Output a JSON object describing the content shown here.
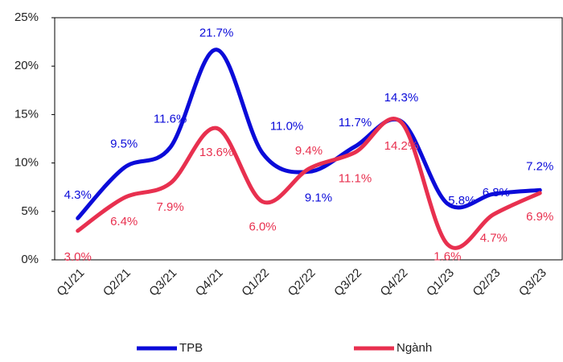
{
  "chart_data": {
    "type": "line",
    "categories": [
      "Q1/21",
      "Q2/21",
      "Q3/21",
      "Q4/21",
      "Q1/22",
      "Q2/22",
      "Q3/22",
      "Q4/22",
      "Q1/23",
      "Q2/23",
      "Q3/23"
    ],
    "series": [
      {
        "name": "TPB",
        "color": "#0b0bd9",
        "values": [
          4.3,
          9.5,
          11.6,
          21.7,
          11.0,
          9.1,
          11.7,
          14.3,
          5.8,
          6.8,
          7.2
        ],
        "value_labels": [
          "4.3%",
          "9.5%",
          "11.6%",
          "21.7%",
          "11.0%",
          "9.1%",
          "11.7%",
          "14.3%",
          "5.8%",
          "6.8%",
          "7.2%"
        ]
      },
      {
        "name": "Ngành",
        "color": "#e8304f",
        "values": [
          3.0,
          6.4,
          7.9,
          13.6,
          6.0,
          9.4,
          11.1,
          14.2,
          1.6,
          4.7,
          6.9
        ],
        "value_labels": [
          "3.0%",
          "6.4%",
          "7.9%",
          "13.6%",
          "6.0%",
          "9.4%",
          "11.1%",
          "14.2%",
          "1.6%",
          "4.7%",
          "6.9%"
        ]
      }
    ],
    "ylim": [
      0,
      25
    ],
    "yticks": [
      {
        "value": 0,
        "label": "0%"
      },
      {
        "value": 5,
        "label": "5%"
      },
      {
        "value": 10,
        "label": "10%"
      },
      {
        "value": 15,
        "label": "15%"
      },
      {
        "value": 20,
        "label": "20%"
      },
      {
        "value": 25,
        "label": "25%"
      }
    ],
    "legend": "bottom"
  }
}
